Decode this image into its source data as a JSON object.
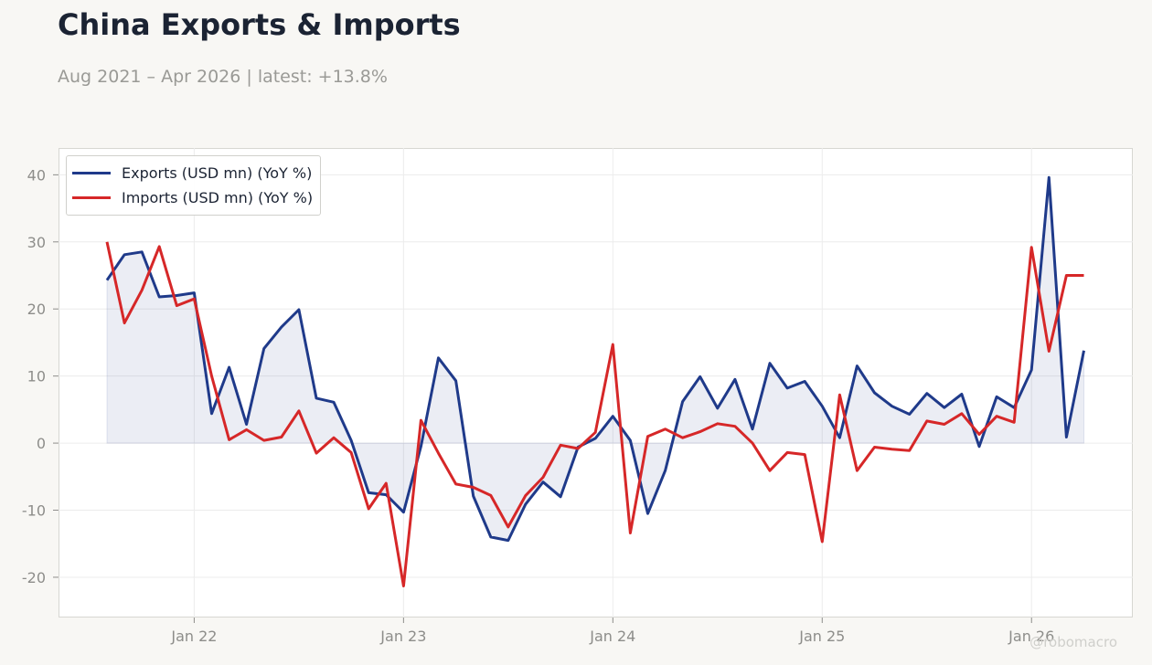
{
  "title": "China Exports & Imports",
  "subtitle": "Aug 2021 – Apr 2026 | latest: +13.8%",
  "watermark": "@robomacro",
  "chart_data": {
    "type": "line",
    "title": "China Exports & Imports",
    "subtitle": "Aug 2021 – Apr 2026 | latest: +13.8%",
    "xlabel": "",
    "ylabel": "",
    "x_start": "2021-08",
    "x_end": "2026-04",
    "x_ticks": [
      "Jan 22",
      "Jan 23",
      "Jan 24",
      "Jan 25",
      "Jan 26"
    ],
    "ylim": [
      -26,
      44
    ],
    "y_ticks": [
      40,
      30,
      20,
      10,
      0,
      -10,
      -20
    ],
    "grid": true,
    "legend_position": "top-left",
    "series": [
      {
        "name": "Exports (USD mn) (YoY %)",
        "color": "#1f3a8a",
        "fill_to_zero": true,
        "values": [
          24.3,
          28.1,
          28.5,
          21.8,
          22.0,
          22.4,
          4.4,
          11.3,
          2.8,
          14.1,
          17.3,
          19.9,
          6.7,
          6.1,
          0.4,
          -7.4,
          -7.7,
          -10.3,
          -0.5,
          12.7,
          9.3,
          -7.9,
          -14.0,
          -14.5,
          -9.1,
          -5.8,
          -8.0,
          -0.6,
          0.7,
          4.0,
          0.4,
          -10.5,
          -4.1,
          6.2,
          9.9,
          5.2,
          9.5,
          2.1,
          11.9,
          8.2,
          9.2,
          5.5,
          0.8,
          11.5,
          7.5,
          5.5,
          4.3,
          7.4,
          5.3,
          7.3,
          -0.5,
          6.9,
          5.3,
          10.9,
          39.6,
          0.9,
          13.8
        ]
      },
      {
        "name": "Imports (USD mn) (YoY %)",
        "color": "#d62728",
        "fill_to_zero": false,
        "values": [
          30.0,
          17.9,
          22.8,
          29.3,
          20.5,
          21.5,
          10.0,
          0.5,
          2.0,
          0.4,
          0.9,
          4.8,
          -1.5,
          0.8,
          -1.4,
          -9.8,
          -6.0,
          -21.3,
          3.4,
          -1.5,
          -6.1,
          -6.6,
          -7.8,
          -12.5,
          -7.8,
          -5.1,
          -0.3,
          -0.8,
          1.6,
          14.7,
          -13.4,
          1.0,
          2.1,
          0.8,
          1.7,
          2.9,
          2.5,
          0.0,
          -4.1,
          -1.4,
          -1.7,
          -14.7,
          7.2,
          -4.1,
          -0.6,
          -0.9,
          -1.1,
          3.3,
          2.8,
          4.4,
          1.3,
          4.0,
          3.1,
          29.2,
          13.7,
          25.0,
          25.0
        ]
      }
    ]
  }
}
